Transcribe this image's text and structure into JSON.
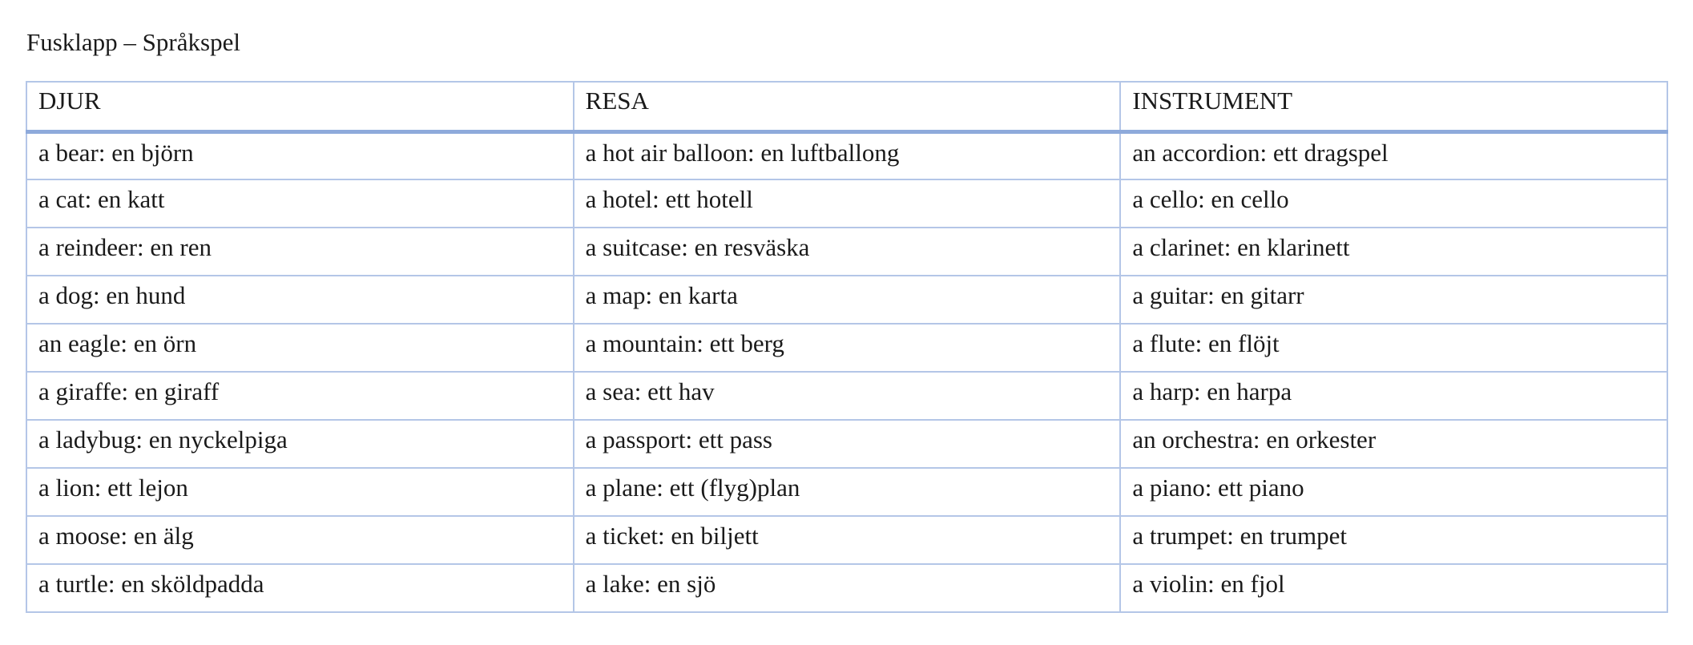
{
  "document": {
    "title": "Fusklapp – Språkspel"
  },
  "table": {
    "headers": [
      "DJUR",
      "RESA",
      "INSTRUMENT"
    ],
    "rows": [
      [
        "a bear: en björn",
        "a hot air balloon: en luftballong",
        "an accordion: ett dragspel"
      ],
      [
        "a cat: en katt",
        "a hotel: ett hotell",
        "a cello: en cello"
      ],
      [
        "a reindeer: en ren",
        "a suitcase: en resväska",
        "a clarinet: en klarinett"
      ],
      [
        "a dog: en hund",
        "a map: en karta",
        "a guitar: en gitarr"
      ],
      [
        "an eagle: en örn",
        "a mountain: ett berg",
        "a flute: en flöjt"
      ],
      [
        "a giraffe: en giraff",
        "a sea: ett hav",
        "a harp: en harpa"
      ],
      [
        "a ladybug: en nyckelpiga",
        "a passport: ett pass",
        "an orchestra: en orkester"
      ],
      [
        "a lion: ett lejon",
        "a plane: ett (flyg)plan",
        "a piano: ett piano"
      ],
      [
        "a moose: en älg",
        "a ticket: en biljett",
        "a trumpet: en trumpet"
      ],
      [
        "a turtle: en sköldpadda",
        "a lake: en sjö",
        "a violin: en fjol"
      ]
    ]
  },
  "colors": {
    "border": "#b4c6e7",
    "header_rule": "#8eaadb",
    "text": "#1a1a1a"
  }
}
